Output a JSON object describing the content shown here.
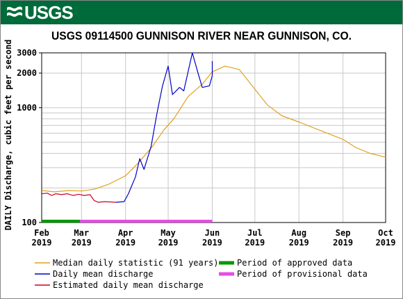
{
  "header": {
    "logo_text": "USGS"
  },
  "colors": {
    "banner": "#006b3a",
    "median": "#e0a020",
    "mean": "#0000c8",
    "estimated": "#cc0022",
    "approved": "#009900",
    "provisional": "#e64de6",
    "grid": "#c8c8c8"
  },
  "chart_data": {
    "type": "line",
    "title": "USGS 09114500 GUNNISON RIVER NEAR GUNNISON, CO.",
    "ylabel": "DAILY Discharge, cubic feet per second",
    "yscale": "log",
    "ylim": [
      100,
      3000
    ],
    "xlim": [
      "2019-02-01",
      "2019-10-01"
    ],
    "y_ticks": [
      "3000",
      "2000",
      "1000",
      "100"
    ],
    "x_ticks": [
      {
        "date": "2019-02-01",
        "month": "Feb",
        "year": "2019"
      },
      {
        "date": "2019-03-01",
        "month": "Mar",
        "year": "2019"
      },
      {
        "date": "2019-04-01",
        "month": "Apr",
        "year": "2019"
      },
      {
        "date": "2019-05-01",
        "month": "May",
        "year": "2019"
      },
      {
        "date": "2019-06-01",
        "month": "Jun",
        "year": "2019"
      },
      {
        "date": "2019-07-01",
        "month": "Jul",
        "year": "2019"
      },
      {
        "date": "2019-08-01",
        "month": "Aug",
        "year": "2019"
      },
      {
        "date": "2019-09-01",
        "month": "Sep",
        "year": "2019"
      },
      {
        "date": "2019-10-01",
        "month": "Oct",
        "year": "2019"
      }
    ],
    "series": [
      {
        "name": "Median daily statistic (91 years)",
        "x": [
          "2019-02-01",
          "2019-02-10",
          "2019-02-20",
          "2019-03-01",
          "2019-03-10",
          "2019-03-20",
          "2019-04-01",
          "2019-04-10",
          "2019-04-20",
          "2019-04-28",
          "2019-05-05",
          "2019-05-15",
          "2019-05-25",
          "2019-06-01",
          "2019-06-10",
          "2019-06-20",
          "2019-07-01",
          "2019-07-10",
          "2019-07-20",
          "2019-08-01",
          "2019-08-15",
          "2019-09-01",
          "2019-09-10",
          "2019-09-20",
          "2019-10-01"
        ],
        "y": [
          190,
          185,
          190,
          188,
          195,
          215,
          255,
          330,
          460,
          640,
          800,
          1250,
          1600,
          2050,
          2300,
          2150,
          1450,
          1050,
          850,
          750,
          640,
          530,
          450,
          400,
          370
        ]
      },
      {
        "name": "Daily mean discharge",
        "x": [
          "2019-03-25",
          "2019-03-31",
          "2019-04-03",
          "2019-04-08",
          "2019-04-11",
          "2019-04-14",
          "2019-04-19",
          "2019-04-23",
          "2019-04-27",
          "2019-05-01",
          "2019-05-04",
          "2019-05-09",
          "2019-05-12",
          "2019-05-15",
          "2019-05-18",
          "2019-05-22",
          "2019-05-25",
          "2019-05-30",
          "2019-06-01",
          "2019-06-01"
        ],
        "y": [
          150,
          152,
          178,
          250,
          360,
          290,
          460,
          880,
          1550,
          2300,
          1300,
          1500,
          1400,
          2050,
          3000,
          2000,
          1500,
          1550,
          1900,
          2550
        ]
      },
      {
        "name": "Estimated daily mean discharge",
        "x": [
          "2019-02-01",
          "2019-02-05",
          "2019-02-08",
          "2019-02-11",
          "2019-02-15",
          "2019-02-19",
          "2019-02-23",
          "2019-02-27",
          "2019-03-03",
          "2019-03-07",
          "2019-03-10",
          "2019-03-13",
          "2019-03-17",
          "2019-03-21",
          "2019-03-25"
        ],
        "y": [
          178,
          180,
          172,
          178,
          175,
          178,
          172,
          176,
          172,
          175,
          155,
          150,
          152,
          151,
          150
        ]
      }
    ],
    "periods": [
      {
        "name": "Period of approved data",
        "start": "2019-02-01",
        "end": "2019-02-28"
      },
      {
        "name": "Period of provisional data",
        "start": "2019-02-28",
        "end": "2019-06-01"
      }
    ],
    "legend": [
      "Median daily statistic (91 years)",
      "Period of approved data",
      "Daily mean discharge",
      "Period of provisional data",
      "Estimated daily mean discharge"
    ],
    "grid": true,
    "legend_position": "bottom"
  }
}
